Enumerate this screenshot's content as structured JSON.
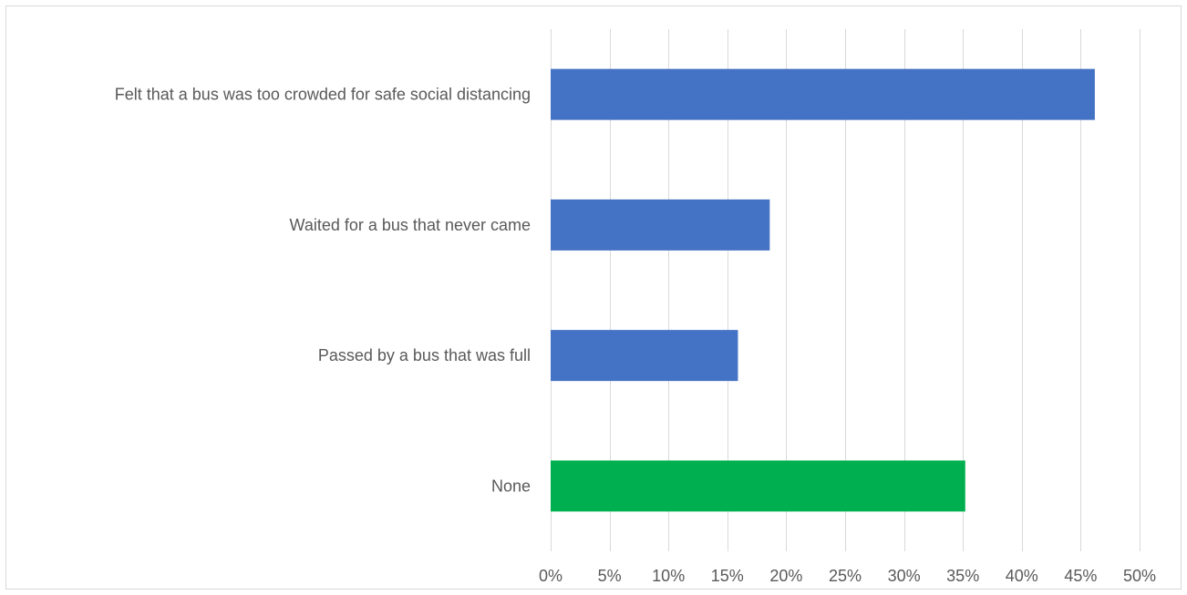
{
  "chart_data": {
    "type": "bar",
    "orientation": "horizontal",
    "categories": [
      "Felt that a bus was too crowded for safe social distancing",
      "Waited for a bus that never came",
      "Passed by a bus that was full",
      "None"
    ],
    "values": [
      46.2,
      18.6,
      15.9,
      35.2
    ],
    "bar_colors": [
      "#4472c4",
      "#4472c4",
      "#4472c4",
      "#00b050"
    ],
    "xlim": [
      0,
      50
    ],
    "x_ticks": [
      0,
      5,
      10,
      15,
      20,
      25,
      30,
      35,
      40,
      45,
      50
    ],
    "x_tick_labels": [
      "0%",
      "5%",
      "10%",
      "15%",
      "20%",
      "25%",
      "30%",
      "35%",
      "40%",
      "45%",
      "50%"
    ],
    "grid": "vertical",
    "legend": "none",
    "title": "",
    "xlabel": "",
    "ylabel": ""
  }
}
